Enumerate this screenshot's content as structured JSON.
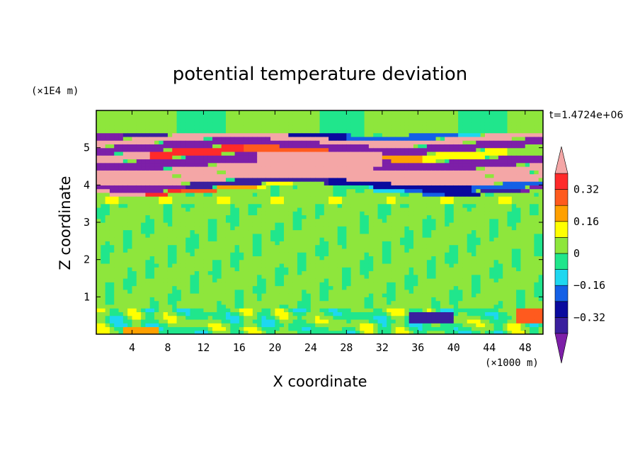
{
  "chart_data": {
    "type": "heatmap",
    "title": "potential temperature deviation",
    "xlabel": "X coordinate",
    "ylabel": "Z coordinate",
    "x_unit": "(×1000 m)",
    "y_unit": "(×1E4 m)",
    "time_label": "t=1.4724e+06",
    "x_ticks": [
      "4",
      "8",
      "12",
      "16",
      "20",
      "24",
      "28",
      "32",
      "36",
      "40",
      "44",
      "48"
    ],
    "y_ticks": [
      "1",
      "2",
      "3",
      "4",
      "5"
    ],
    "xlim": [
      0,
      50
    ],
    "ylim": [
      0,
      6
    ],
    "colorbar": {
      "labels": [
        "0.32",
        "0.16",
        "0",
        "-0.16",
        "-0.32"
      ],
      "levels": [
        -0.4,
        -0.32,
        -0.24,
        -0.16,
        -0.08,
        0,
        0.08,
        0.16,
        0.24,
        0.32,
        0.4
      ],
      "colors": [
        "#7d1fa8",
        "#3a1f9e",
        "#0a0a9e",
        "#1460e6",
        "#1ed7f0",
        "#20e68c",
        "#8ee63c",
        "#ffff00",
        "#ffa000",
        "#ff5a1e",
        "#ff2a2a",
        "#f4a6a6"
      ]
    },
    "description_bands": [
      {
        "z": [
          0.0,
          0.7
        ],
        "pattern": "mixed small-scale"
      },
      {
        "z": [
          0.7,
          3.6
        ],
        "pattern": "mostly near zero"
      },
      {
        "z": [
          3.6,
          5.6
        ],
        "pattern": "alternating strong positive / negative layers"
      },
      {
        "z": [
          5.6,
          6.0
        ],
        "pattern": "near zero"
      }
    ]
  }
}
